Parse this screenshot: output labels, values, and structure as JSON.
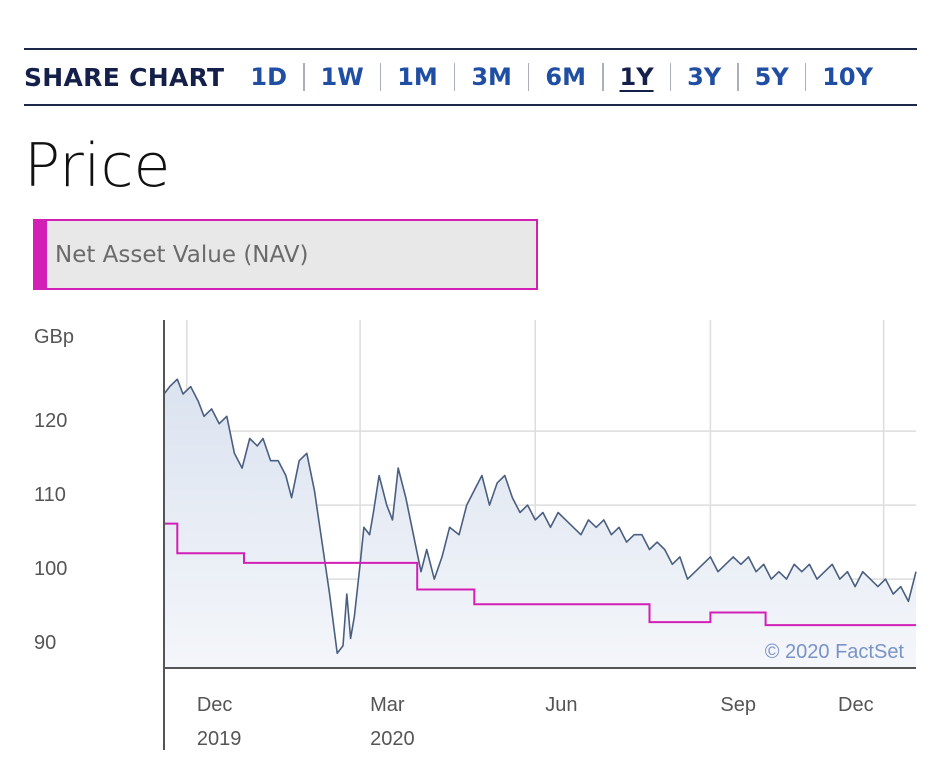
{
  "header": {
    "title": "SHARE CHART",
    "tabs": [
      {
        "label": "1D",
        "active": false
      },
      {
        "label": "1W",
        "active": false
      },
      {
        "label": "1M",
        "active": false
      },
      {
        "label": "3M",
        "active": false
      },
      {
        "label": "6M",
        "active": false
      },
      {
        "label": "1Y",
        "active": true
      },
      {
        "label": "3Y",
        "active": false
      },
      {
        "label": "5Y",
        "active": false
      },
      {
        "label": "10Y",
        "active": false
      }
    ]
  },
  "section": {
    "title": "Price",
    "legend_label": "Net Asset Value (NAV)"
  },
  "colors": {
    "price_line": "#4a5f80",
    "price_fill": "#dbe3f0",
    "nav_line": "#d21fb6",
    "grid": "#dddddd",
    "axis": "#555555"
  },
  "chart_data": {
    "type": "line",
    "xlabel": "",
    "ylabel": "GBp",
    "ylim": [
      88,
      135
    ],
    "yticks": [
      90,
      100,
      110,
      120
    ],
    "xlim": [
      "2019-11-19",
      "2020-12-18"
    ],
    "xticks": [
      {
        "date": "2019-12-01",
        "month": "Dec",
        "year": "2019"
      },
      {
        "date": "2020-03-01",
        "month": "Mar",
        "year": "2020"
      },
      {
        "date": "2020-06-01",
        "month": "Jun",
        "year": ""
      },
      {
        "date": "2020-09-01",
        "month": "Sep",
        "year": ""
      },
      {
        "date": "2020-12-01",
        "month": "Dec",
        "year": ""
      }
    ],
    "credit": "© 2020 FactSet",
    "series": [
      {
        "legend": false,
        "x": [
          "2019-11-19",
          "2019-11-22",
          "2019-11-26",
          "2019-11-29",
          "2019-12-03",
          "2019-12-07",
          "2019-12-10",
          "2019-12-14",
          "2019-12-18",
          "2019-12-22",
          "2019-12-26",
          "2019-12-30",
          "2020-01-03",
          "2020-01-07",
          "2020-01-10",
          "2020-01-14",
          "2020-01-18",
          "2020-01-22",
          "2020-01-25",
          "2020-01-29",
          "2020-02-02",
          "2020-02-06",
          "2020-02-10",
          "2020-02-14",
          "2020-02-18",
          "2020-02-21",
          "2020-02-23",
          "2020-02-25",
          "2020-02-27",
          "2020-03-01",
          "2020-03-03",
          "2020-03-06",
          "2020-03-08",
          "2020-03-11",
          "2020-03-15",
          "2020-03-18",
          "2020-03-21",
          "2020-03-25",
          "2020-03-29",
          "2020-04-02",
          "2020-04-05",
          "2020-04-09",
          "2020-04-13",
          "2020-04-17",
          "2020-04-22",
          "2020-04-26",
          "2020-04-30",
          "2020-05-04",
          "2020-05-08",
          "2020-05-12",
          "2020-05-16",
          "2020-05-20",
          "2020-05-24",
          "2020-05-28",
          "2020-06-01",
          "2020-06-05",
          "2020-06-09",
          "2020-06-13",
          "2020-06-17",
          "2020-06-21",
          "2020-06-25",
          "2020-06-29",
          "2020-07-03",
          "2020-07-07",
          "2020-07-11",
          "2020-07-15",
          "2020-07-19",
          "2020-07-23",
          "2020-07-27",
          "2020-07-31",
          "2020-08-04",
          "2020-08-08",
          "2020-08-12",
          "2020-08-16",
          "2020-08-20",
          "2020-08-24",
          "2020-08-28",
          "2020-09-01",
          "2020-09-05",
          "2020-09-09",
          "2020-09-13",
          "2020-09-17",
          "2020-09-21",
          "2020-09-25",
          "2020-09-29",
          "2020-10-03",
          "2020-10-07",
          "2020-10-11",
          "2020-10-15",
          "2020-10-19",
          "2020-10-23",
          "2020-10-27",
          "2020-10-31",
          "2020-11-04",
          "2020-11-08",
          "2020-11-12",
          "2020-11-16",
          "2020-11-20",
          "2020-11-24",
          "2020-11-28",
          "2020-12-02",
          "2020-12-06",
          "2020-12-10",
          "2020-12-14",
          "2020-12-18"
        ],
        "values": [
          125,
          126,
          127,
          125,
          126,
          124,
          122,
          123,
          121,
          122,
          117,
          115,
          119,
          118,
          119,
          116,
          116,
          114,
          111,
          116,
          117,
          112,
          105,
          98,
          90,
          91,
          98,
          92,
          95,
          102,
          107,
          106,
          109,
          114,
          110,
          108,
          115,
          111,
          106,
          101,
          104,
          100,
          103,
          107,
          106,
          110,
          112,
          114,
          110,
          113,
          114,
          111,
          109,
          110,
          108,
          109,
          107,
          109,
          108,
          107,
          106,
          108,
          107,
          108,
          106,
          107,
          105,
          106,
          106,
          104,
          105,
          104,
          102,
          103,
          100,
          101,
          102,
          103,
          101,
          102,
          103,
          102,
          103,
          101,
          102,
          100,
          101,
          100,
          102,
          101,
          102,
          100,
          101,
          102,
          100,
          101,
          99,
          101,
          100,
          99,
          100,
          98,
          99,
          97,
          101
        ]
      },
      {
        "name": "Net Asset Value (NAV)",
        "x": [
          "2019-11-19",
          "2019-11-26",
          "2019-11-26",
          "2019-12-31",
          "2019-12-31",
          "2020-02-29",
          "2020-02-29",
          "2020-03-31",
          "2020-03-31",
          "2020-04-30",
          "2020-04-30",
          "2020-06-30",
          "2020-06-30",
          "2020-07-31",
          "2020-07-31",
          "2020-09-01",
          "2020-09-01",
          "2020-09-30",
          "2020-09-30",
          "2020-10-31",
          "2020-10-31",
          "2020-12-18"
        ],
        "values": [
          107.5,
          107.5,
          103.5,
          103.5,
          102.2,
          102.2,
          102.2,
          102.2,
          98.6,
          98.6,
          96.6,
          96.6,
          96.6,
          96.6,
          94.2,
          94.2,
          95.5,
          95.5,
          93.8,
          93.8,
          93.8,
          93.8
        ]
      }
    ]
  }
}
